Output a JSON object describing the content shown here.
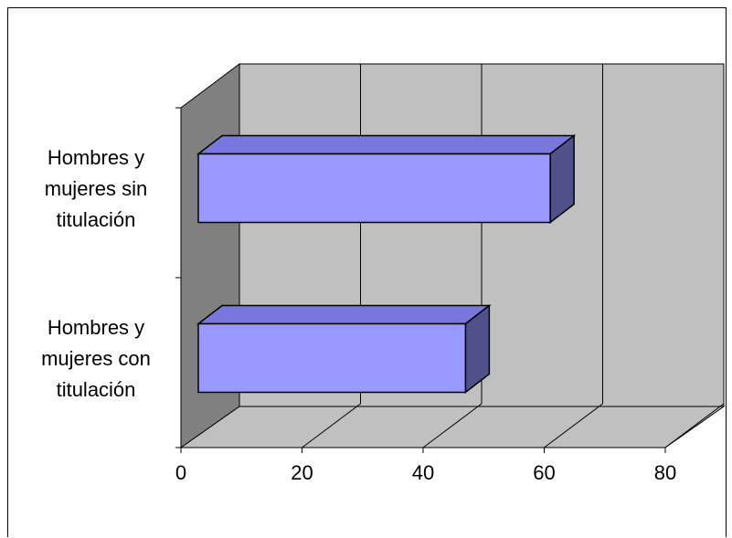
{
  "chart_data": {
    "type": "bar",
    "orientation": "horizontal",
    "three_d": true,
    "title": "",
    "xlabel": "",
    "ylabel": "",
    "categories": [
      [
        "Hombres y",
        "mujeres sin",
        "titulación"
      ],
      [
        "Hombres y",
        "mujeres con",
        "titulación"
      ]
    ],
    "values": [
      61,
      47
    ],
    "xlim": [
      0,
      80
    ],
    "xticks": [
      "0",
      "20",
      "40",
      "60",
      "80"
    ],
    "grid": true,
    "legend": "none",
    "colors": {
      "bar_front": "#9999ff",
      "bar_top": "#7777dd",
      "bar_side": "#50508a",
      "wall_back": "#c0c0c0",
      "wall_side": "#808080",
      "floor": "#c0c0c0"
    }
  }
}
